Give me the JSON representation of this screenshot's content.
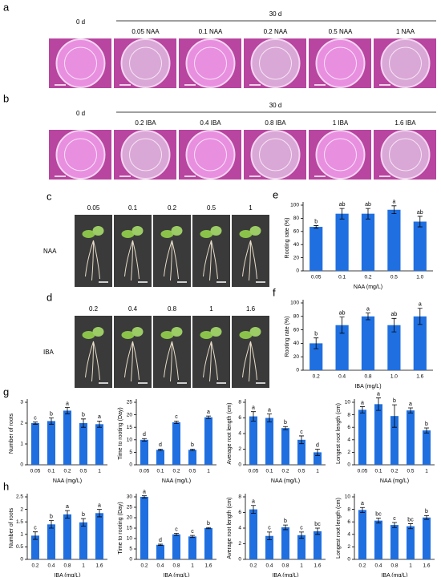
{
  "panels": {
    "a": {
      "label": "a",
      "day0": "0 d",
      "day30": "30 d",
      "treatments": [
        "0.05 NAA",
        "0.1 NAA",
        "0.2 NAA",
        "0.5 NAA",
        "1 NAA"
      ]
    },
    "b": {
      "label": "b",
      "day0": "0 d",
      "day30": "30 d",
      "treatments": [
        "0.2 IBA",
        "0.4 IBA",
        "0.8 IBA",
        "1 IBA",
        "1.6 IBA"
      ]
    },
    "c": {
      "label": "c",
      "row_label": "NAA",
      "treatments": [
        "0.05",
        "0.1",
        "0.2",
        "0.5",
        "1"
      ]
    },
    "d": {
      "label": "d",
      "row_label": "IBA",
      "treatments": [
        "0.2",
        "0.4",
        "0.8",
        "1",
        "1.6"
      ]
    }
  },
  "chart_data": [
    {
      "type": "bar",
      "panel": "e",
      "x_label": "NAA   (mg/L)",
      "y_label": "Rooting rate (%)",
      "color": "#1f6fe0",
      "categories": [
        "0.05",
        "0.1",
        "0.2",
        "0.5",
        "1.0"
      ],
      "values": [
        67,
        87,
        87,
        93,
        75
      ],
      "errors": [
        2,
        8,
        8,
        6,
        8
      ],
      "significance": [
        "b",
        "ab",
        "ab",
        "a",
        "ab"
      ],
      "ylim": [
        0,
        100
      ],
      "yticks": [
        0,
        20,
        40,
        60,
        80,
        100
      ]
    },
    {
      "type": "bar",
      "panel": "f",
      "x_label": "IBA   (mg/L)",
      "y_label": "Rooting rate (%)",
      "color": "#1f6fe0",
      "categories": [
        "0.2",
        "0.4",
        "0.8",
        "1.0",
        "1.6"
      ],
      "values": [
        40,
        67,
        80,
        67,
        80
      ],
      "errors": [
        8,
        12,
        5,
        10,
        12
      ],
      "significance": [
        "b",
        "ab",
        "a",
        "ab",
        "a"
      ],
      "ylim": [
        0,
        100
      ],
      "yticks": [
        0,
        20,
        40,
        60,
        80,
        100
      ]
    },
    {
      "type": "bar",
      "panel": "g",
      "x_label": "NAA   (mg/L)",
      "y_label": "Number of roots",
      "color": "#1f6fe0",
      "categories": [
        "0.05",
        "0.1",
        "0.2",
        "0.5",
        "1"
      ],
      "values": [
        2.0,
        2.1,
        2.6,
        2.0,
        1.95
      ],
      "errors": [
        0.05,
        0.15,
        0.15,
        0.2,
        0.15
      ],
      "significance": [
        "c",
        "b",
        "a",
        "b",
        "a"
      ],
      "ylim": [
        0,
        3
      ],
      "yticks": [
        0,
        1,
        2,
        3
      ]
    },
    {
      "type": "bar",
      "x_label": "NAA   (mg/L)",
      "y_label": "Time to rooting (Day)",
      "color": "#1f6fe0",
      "categories": [
        "0.05",
        "0.1",
        "0.2",
        "0.5",
        "1"
      ],
      "values": [
        10,
        6,
        17,
        6,
        19
      ],
      "errors": [
        0.5,
        0.3,
        0.5,
        0.3,
        0.5
      ],
      "significance": [
        "d",
        "d",
        "c",
        "b",
        "a"
      ],
      "ylim": [
        0,
        25
      ],
      "yticks": [
        0,
        5,
        10,
        15,
        20,
        25
      ]
    },
    {
      "type": "bar",
      "x_label": "NAA   (mg/L)",
      "y_label": "Average root length (cm)",
      "color": "#1f6fe0",
      "categories": [
        "0.05",
        "0.1",
        "0.2",
        "0.5",
        "1"
      ],
      "values": [
        6.2,
        6.0,
        4.7,
        3.2,
        1.6
      ],
      "errors": [
        0.6,
        0.5,
        0.2,
        0.5,
        0.4
      ],
      "significance": [
        "a",
        "a",
        "b",
        "c",
        "d"
      ],
      "ylim": [
        0,
        8
      ],
      "yticks": [
        0,
        2,
        4,
        6,
        8
      ]
    },
    {
      "type": "bar",
      "x_label": "NAA   (mg/L)",
      "y_label": "Longest root length (cm)",
      "color": "#1f6fe0",
      "categories": [
        "0.05",
        "0.1",
        "0.2",
        "0.5",
        "1"
      ],
      "values": [
        8.8,
        9.7,
        7.8,
        8.7,
        5.5
      ],
      "errors": [
        0.5,
        1.0,
        1.8,
        0.4,
        0.4
      ],
      "significance": [
        "a",
        "a",
        "b",
        "a",
        "b"
      ],
      "ylim": [
        0,
        10
      ],
      "yticks": [
        0,
        2,
        4,
        6,
        8,
        10
      ]
    },
    {
      "type": "bar",
      "panel": "h",
      "x_label": "IBA   (mg/L)",
      "y_label": "Number of roots",
      "color": "#1f6fe0",
      "categories": [
        "0.2",
        "0.4",
        "0.8",
        "1",
        "1.6"
      ],
      "values": [
        0.95,
        1.4,
        1.8,
        1.48,
        1.85
      ],
      "errors": [
        0.15,
        0.15,
        0.15,
        0.15,
        0.15
      ],
      "significance": [
        "c",
        "b",
        "a",
        "b",
        "a"
      ],
      "ylim": [
        0,
        2.5
      ],
      "yticks": [
        0,
        0.5,
        1,
        1.5,
        2,
        2.5
      ]
    },
    {
      "type": "bar",
      "x_label": "IBA   (mg/L)",
      "y_label": "Time to rooting (Day)",
      "color": "#1f6fe0",
      "categories": [
        "0.2",
        "0.4",
        "0.8",
        "1",
        "1.6"
      ],
      "values": [
        30,
        7,
        12,
        11,
        15
      ],
      "errors": [
        0.5,
        0.3,
        0.5,
        0.5,
        0.3
      ],
      "significance": [
        "a",
        "d",
        "c",
        "c",
        "b"
      ],
      "ylim": [
        0,
        30
      ],
      "yticks": [
        0,
        5,
        10,
        15,
        20,
        25,
        30
      ]
    },
    {
      "type": "bar",
      "x_label": "IBA   (mg/L)",
      "y_label": "Average root length (cm)",
      "color": "#1f6fe0",
      "categories": [
        "0.2",
        "0.4",
        "0.8",
        "1",
        "1.6"
      ],
      "values": [
        6.4,
        3.0,
        4.1,
        3.1,
        3.6
      ],
      "errors": [
        0.5,
        0.5,
        0.3,
        0.4,
        0.4
      ],
      "significance": [
        "a",
        "c",
        "b",
        "c",
        "bc"
      ],
      "ylim": [
        0,
        8
      ],
      "yticks": [
        0,
        2,
        4,
        6,
        8
      ]
    },
    {
      "type": "bar",
      "x_label": "IBA   (mg/L)",
      "y_label": "Longest root length (cm)",
      "color": "#1f6fe0",
      "categories": [
        "0.2",
        "0.4",
        "0.8",
        "1",
        "1.6"
      ],
      "values": [
        7.9,
        6.2,
        5.5,
        5.3,
        6.7
      ],
      "errors": [
        0.4,
        0.4,
        0.4,
        0.4,
        0.3
      ],
      "significance": [
        "a",
        "bc",
        "c",
        "bc",
        "b"
      ],
      "ylim": [
        0,
        10
      ],
      "yticks": [
        0,
        2,
        4,
        6,
        8,
        10
      ]
    }
  ]
}
